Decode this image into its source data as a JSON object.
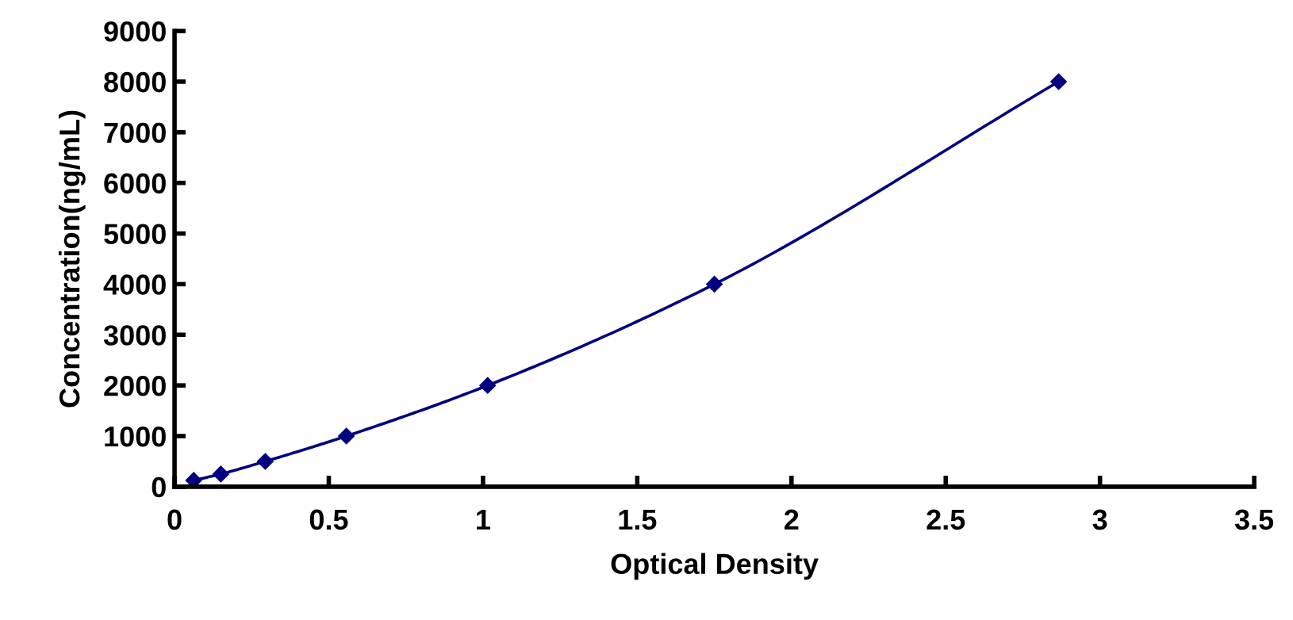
{
  "chart_data": {
    "type": "line",
    "xlabel": "Optical Density",
    "ylabel": "Concentration(ng/mL)",
    "series": [
      {
        "color": "#000080",
        "x": [
          0.062,
          0.15,
          0.294,
          0.557,
          1.015,
          1.75,
          2.866
        ],
        "values": [
          125,
          250,
          500,
          1000,
          2000,
          4000,
          8000
        ]
      }
    ],
    "xlim": [
      0,
      3.5
    ],
    "xticks": [
      0,
      0.5,
      1,
      1.5,
      2,
      2.5,
      3,
      3.5
    ],
    "ylim": [
      0,
      9000
    ],
    "yticks": [
      0,
      1000,
      2000,
      3000,
      4000,
      5000,
      6000,
      7000,
      8000,
      9000
    ],
    "grid": false,
    "legend": false,
    "marker": "diamond",
    "line_style": "solid"
  }
}
